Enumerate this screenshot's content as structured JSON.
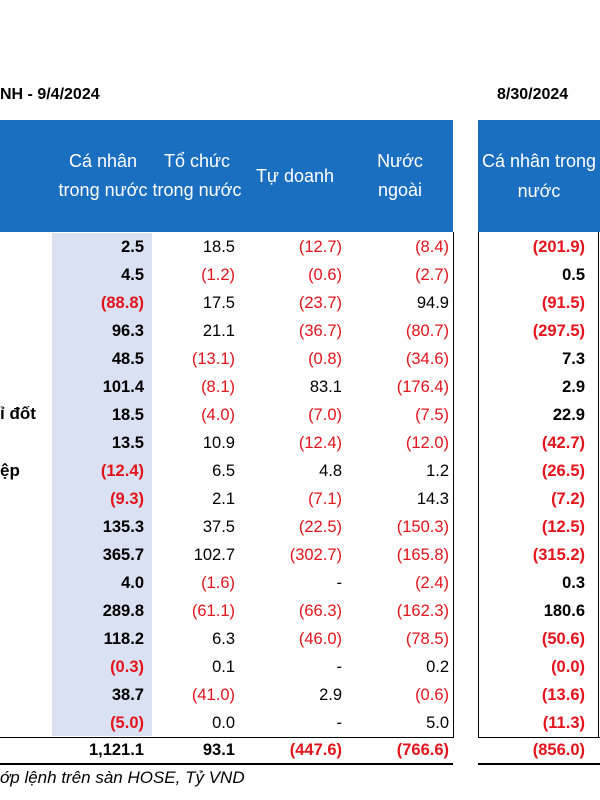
{
  "title_left": "NH - 9/4/2024",
  "title_right": "8/30/2024",
  "headers": {
    "col1": "Cá nhân trong nước",
    "col2": "Tổ chức trong nước",
    "col3": "Tự doanh",
    "col4": "Nước ngoài",
    "col5": "Cá nhân trong nước"
  },
  "side_labels": [
    "ỉ đốt",
    "ệp"
  ],
  "rows": [
    {
      "c1": "2.5",
      "c2": "18.5",
      "c3": "(12.7)",
      "c4": "(8.4)",
      "c5": "(201.9)"
    },
    {
      "c1": "4.5",
      "c2": "(1.2)",
      "c3": "(0.6)",
      "c4": "(2.7)",
      "c5": "0.5"
    },
    {
      "c1": "(88.8)",
      "c2": "17.5",
      "c3": "(23.7)",
      "c4": "94.9",
      "c5": "(91.5)"
    },
    {
      "c1": "96.3",
      "c2": "21.1",
      "c3": "(36.7)",
      "c4": "(80.7)",
      "c5": "(297.5)"
    },
    {
      "c1": "48.5",
      "c2": "(13.1)",
      "c3": "(0.8)",
      "c4": "(34.6)",
      "c5": "7.3"
    },
    {
      "c1": "101.4",
      "c2": "(8.1)",
      "c3": "83.1",
      "c4": "(176.4)",
      "c5": "2.9"
    },
    {
      "c1": "18.5",
      "c2": "(4.0)",
      "c3": "(7.0)",
      "c4": "(7.5)",
      "c5": "22.9"
    },
    {
      "c1": "13.5",
      "c2": "10.9",
      "c3": "(12.4)",
      "c4": "(12.0)",
      "c5": "(42.7)"
    },
    {
      "c1": "(12.4)",
      "c2": "6.5",
      "c3": "4.8",
      "c4": "1.2",
      "c5": "(26.5)"
    },
    {
      "c1": "(9.3)",
      "c2": "2.1",
      "c3": "(7.1)",
      "c4": "14.3",
      "c5": "(7.2)"
    },
    {
      "c1": "135.3",
      "c2": "37.5",
      "c3": "(22.5)",
      "c4": "(150.3)",
      "c5": "(12.5)"
    },
    {
      "c1": "365.7",
      "c2": "102.7",
      "c3": "(302.7)",
      "c4": "(165.8)",
      "c5": "(315.2)"
    },
    {
      "c1": "4.0",
      "c2": "(1.6)",
      "c3": "-",
      "c4": "(2.4)",
      "c5": "0.3"
    },
    {
      "c1": "289.8",
      "c2": "(61.1)",
      "c3": "(66.3)",
      "c4": "(162.3)",
      "c5": "180.6"
    },
    {
      "c1": "118.2",
      "c2": "6.3",
      "c3": "(46.0)",
      "c4": "(78.5)",
      "c5": "(50.6)"
    },
    {
      "c1": "(0.3)",
      "c2": "0.1",
      "c3": "-",
      "c4": "0.2",
      "c5": "(0.0)"
    },
    {
      "c1": "38.7",
      "c2": "(41.0)",
      "c3": "2.9",
      "c4": "(0.6)",
      "c5": "(13.6)"
    },
    {
      "c1": "(5.0)",
      "c2": "0.0",
      "c3": "-",
      "c4": "5.0",
      "c5": "(11.3)"
    }
  ],
  "total": {
    "c1": "1,121.1",
    "c2": "93.1",
    "c3": "(447.6)",
    "c4": "(766.6)",
    "c5": "(856.0)"
  },
  "footnote": "ớp lệnh trên sàn HOSE, Tỷ VND",
  "colors": {
    "header_bg": "#1b6fc1",
    "shade": "#d9e1f2",
    "negative": "#e3141b"
  }
}
